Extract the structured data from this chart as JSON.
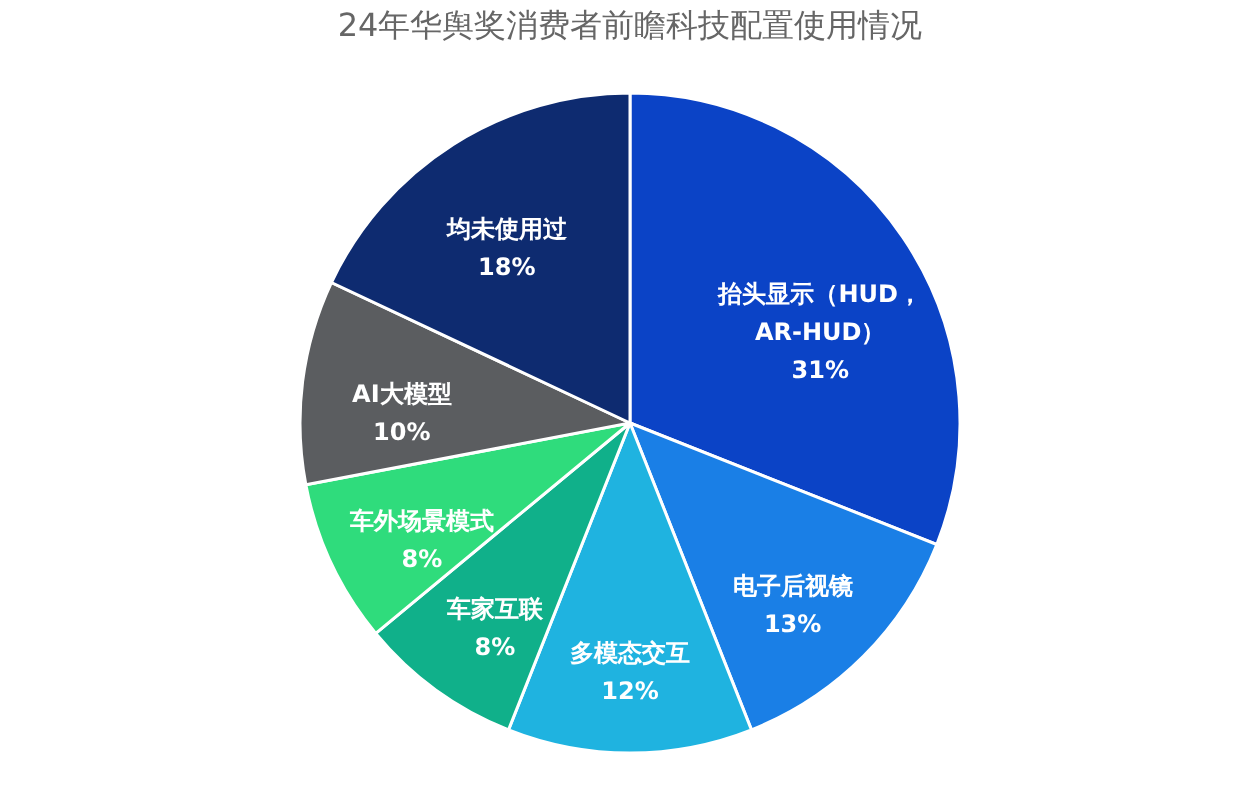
{
  "chart_data": {
    "type": "pie",
    "title": "24年华舆奖消费者前瞻科技配置使用情况",
    "categories": [
      "抬头显示（HUD，\nAR-HUD）",
      "电子后视镜",
      "多模态交互",
      "车家互联",
      "车外场景模式",
      "AI大模型",
      "均未使用过"
    ],
    "values": [
      31,
      13,
      12,
      8,
      8,
      10,
      18
    ],
    "value_labels": [
      "31%",
      "13%",
      "12%",
      "8%",
      "8%",
      "10%",
      "18%"
    ],
    "colors": [
      "#0b43c6",
      "#1a7fe6",
      "#1fb3e0",
      "#10b08a",
      "#2fdc7c",
      "#5b5d60",
      "#0e2b70"
    ],
    "legend": false
  }
}
